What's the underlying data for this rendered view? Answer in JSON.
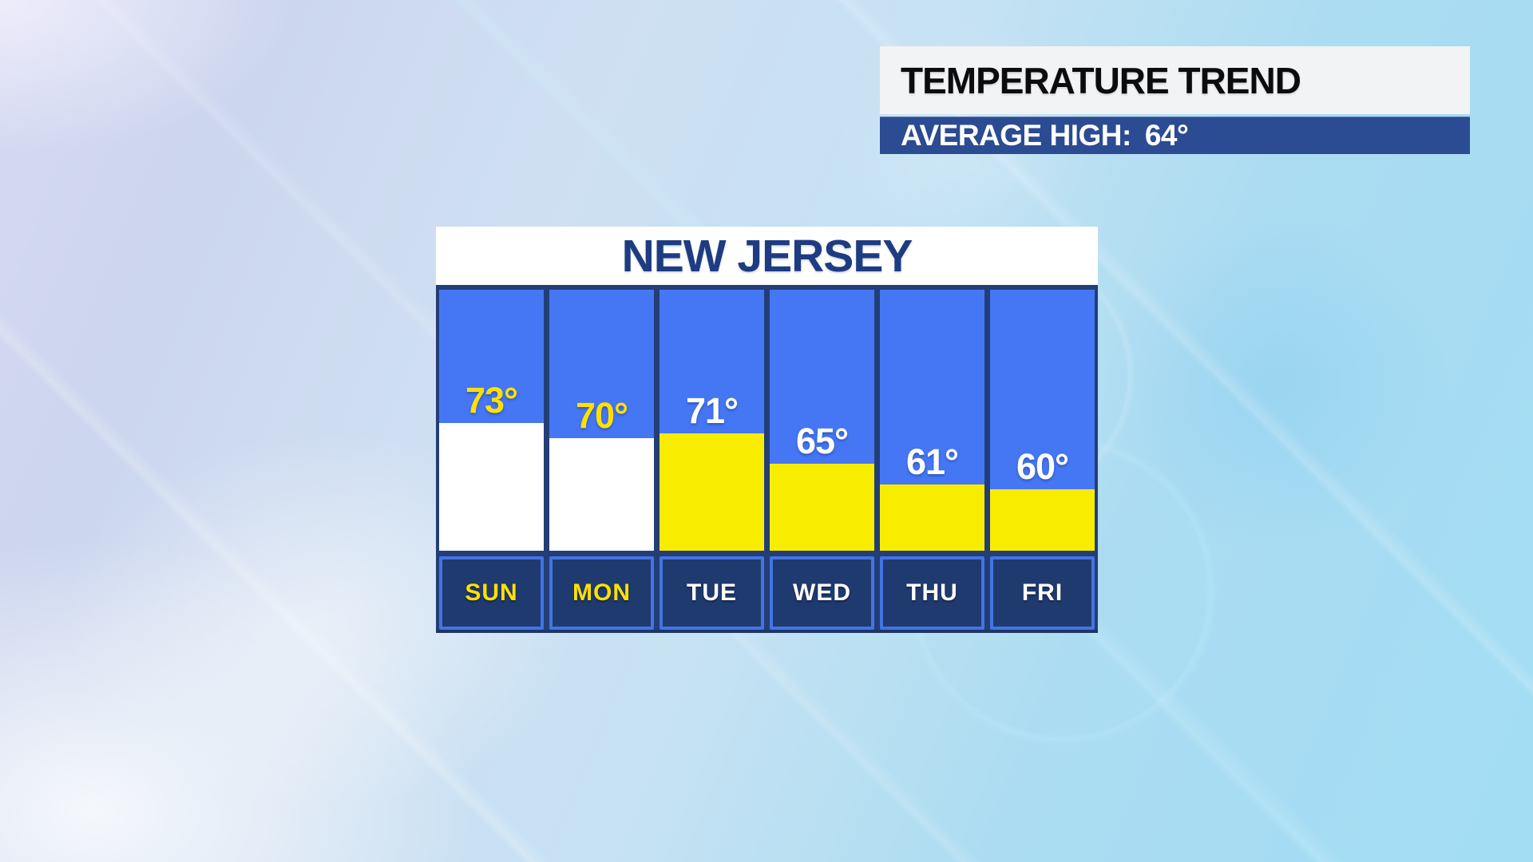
{
  "panel": {
    "title": "TEMPERATURE TREND",
    "average_label": "AVERAGE HIGH:",
    "average_value": "64°"
  },
  "chart_data": {
    "type": "bar",
    "title": "NEW JERSEY",
    "categories": [
      "SUN",
      "MON",
      "TUE",
      "WED",
      "THU",
      "FRI"
    ],
    "values": [
      73,
      70,
      71,
      65,
      61,
      60
    ],
    "value_labels": [
      "73°",
      "70°",
      "71°",
      "65°",
      "61°",
      "60°"
    ],
    "average_high": 64,
    "ylim": [
      48,
      99
    ],
    "weekend_indices": [
      0,
      1
    ],
    "legend": "weekend days use yellow labels with white bars; weekdays use white labels with yellow bars",
    "colors": {
      "column_sky": "#4577f5",
      "grid_navy": "#233e76",
      "day_cell_bg": "#1f3a6e",
      "day_cell_border": "#4374e3",
      "weekend_bar": "#ffffff",
      "weekday_bar": "#f8ec00",
      "weekend_text": "#ffe100",
      "weekday_text": "#ffffff",
      "chart_title_color": "#1e3c82",
      "panel_title_bg": "#f2f3f5",
      "panel_title_color": "#0c0c0e",
      "average_bar_bg": "#2b4b92",
      "average_bar_color": "#ffffff"
    }
  }
}
